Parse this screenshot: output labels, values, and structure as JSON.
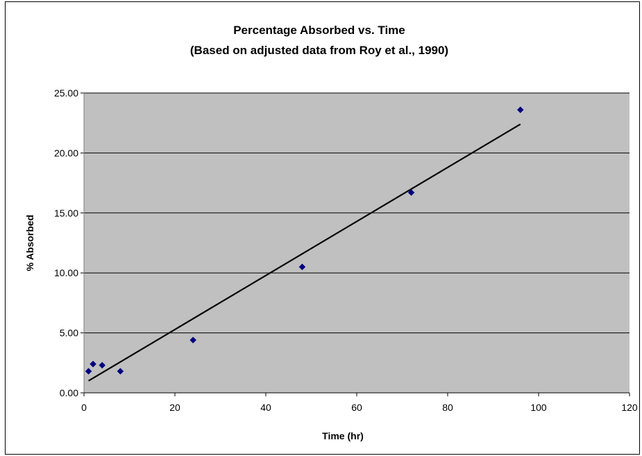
{
  "chart_data": {
    "type": "scatter",
    "title_line1": "Percentage Absorbed vs. Time",
    "title_line2": "(Based on adjusted data from Roy et al., 1990)",
    "xlabel": "Time (hr)",
    "ylabel": "% Absorbed",
    "xlim": [
      0,
      120
    ],
    "ylim": [
      0,
      25
    ],
    "x_ticks": [
      "0",
      "20",
      "40",
      "60",
      "80",
      "100",
      "120"
    ],
    "y_ticks": [
      "0.00",
      "5.00",
      "10.00",
      "15.00",
      "20.00",
      "25.00"
    ],
    "grid": "horizontal",
    "legend": "none",
    "plot_background": "#c0c0c0",
    "series": [
      {
        "color": "#000080",
        "marker": "diamond",
        "points": [
          {
            "x": 1,
            "y": 1.8
          },
          {
            "x": 2,
            "y": 2.4
          },
          {
            "x": 4,
            "y": 2.3
          },
          {
            "x": 8,
            "y": 1.8
          },
          {
            "x": 24,
            "y": 4.4
          },
          {
            "x": 48,
            "y": 10.5
          },
          {
            "x": 72,
            "y": 16.7
          },
          {
            "x": 96,
            "y": 23.6
          }
        ]
      }
    ],
    "trendline": {
      "type": "linear",
      "color": "#000000",
      "from": {
        "x": 1,
        "y": 1.0
      },
      "to": {
        "x": 96,
        "y": 22.4
      }
    }
  }
}
